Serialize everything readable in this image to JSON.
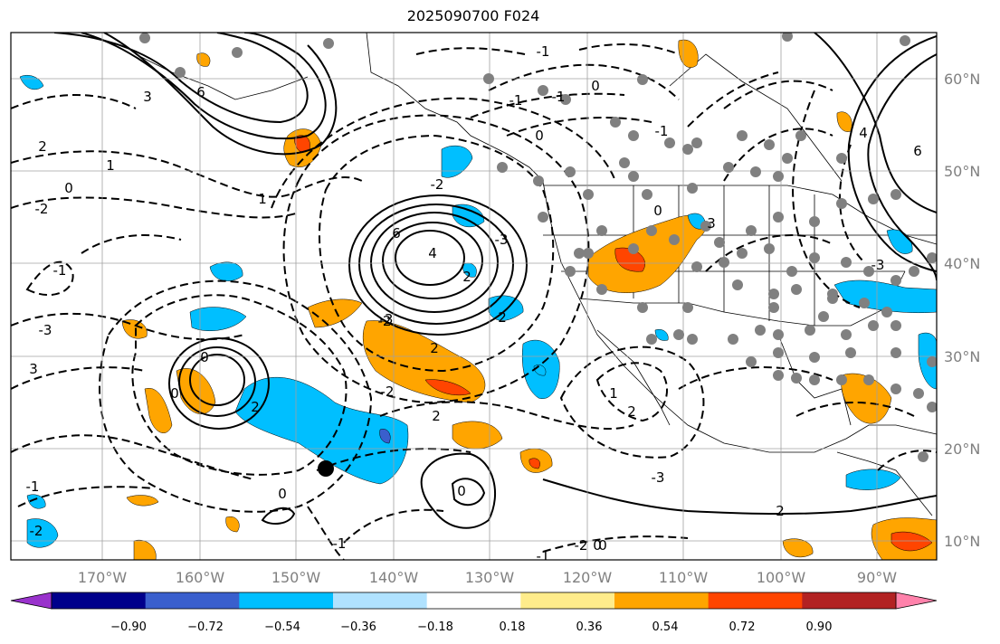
{
  "title": "2025090700 F024",
  "map": {
    "lon_labels": [
      "170°W",
      "160°W",
      "150°W",
      "140°W",
      "130°W",
      "120°W",
      "110°W",
      "100°W",
      "90°W"
    ],
    "lat_labels": [
      "60°N",
      "50°N",
      "40°N",
      "30°N",
      "20°N",
      "10°N"
    ],
    "gridline_color": "#a0a0a0",
    "label_color": "#808080",
    "contour_labels": [
      "3",
      "6",
      "2",
      "1",
      "0",
      "-2",
      "-1",
      "-3",
      "3",
      "0",
      "1",
      "6",
      "4",
      "2",
      "-2",
      "-3",
      "2",
      "-2",
      "-1",
      "-3",
      "-2",
      "0",
      "2",
      "0",
      "-2",
      "-3",
      "2",
      "0",
      "-1",
      "-1",
      "0",
      "-1",
      "0",
      "1",
      "2",
      "0",
      "3",
      "-1",
      "6",
      "4",
      "-3",
      "2",
      "-1",
      "0",
      "2",
      "0",
      "-1",
      "-2"
    ],
    "station_marker": "gray-dot",
    "center_marker": "black-dot"
  },
  "colorbar": {
    "ticks": [
      "−0.90",
      "−0.72",
      "−0.54",
      "−0.36",
      "−0.18",
      "0.18",
      "0.36",
      "0.54",
      "0.72",
      "0.90"
    ],
    "colors": [
      "#9932cc",
      "#00008b",
      "#3a5fcd",
      "#00bfff",
      "#b0e2ff",
      "#ffffff",
      "#ffec8b",
      "#ffa500",
      "#ff4500",
      "#b22222",
      "#ff82ab"
    ],
    "extend": "both"
  }
}
